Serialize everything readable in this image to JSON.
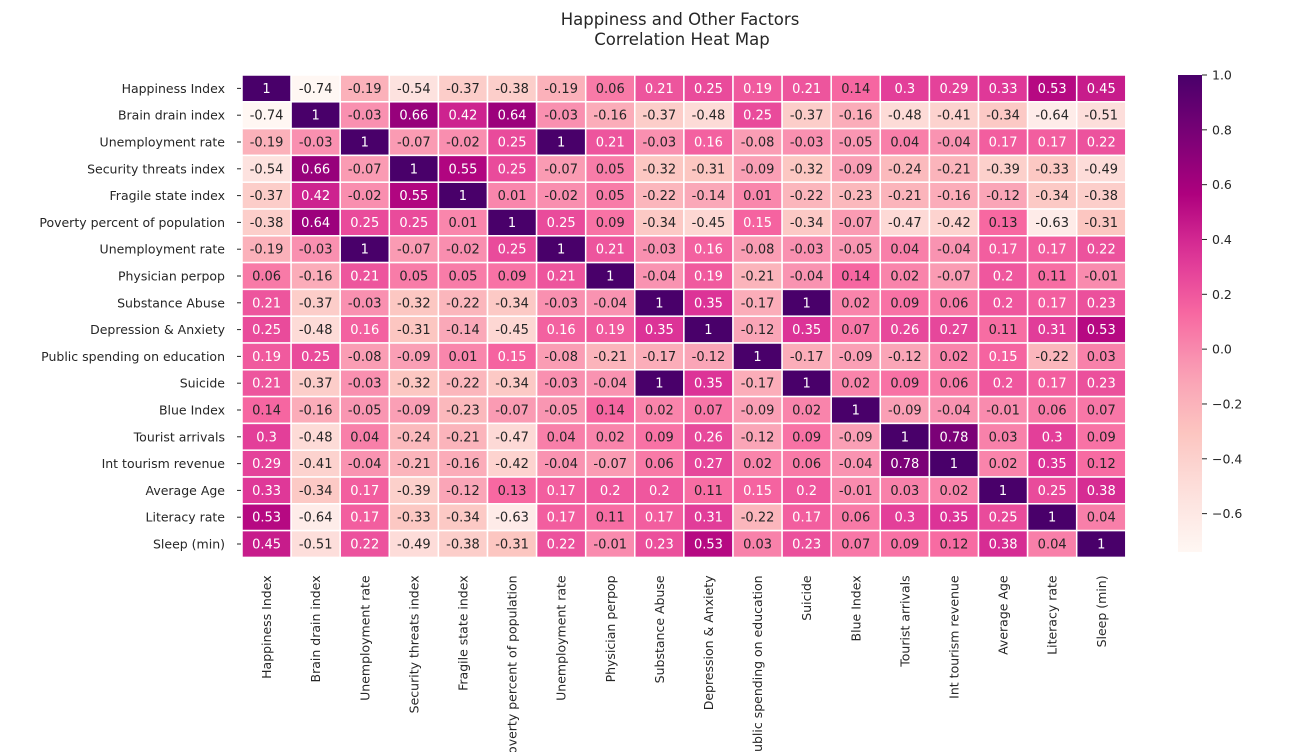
{
  "chart_data": {
    "type": "heatmap",
    "title": "Happiness and Other Factors",
    "subtitle": "Correlation Heat Map",
    "labels": [
      "Happiness Index",
      "Brain drain index",
      "Unemployment rate",
      "Security threats index",
      "Fragile state index",
      "Poverty percent of population",
      "Unemployment rate",
      "Physician perpop",
      "Substance Abuse",
      "Depression & Anxiety",
      "Public spending on education",
      "Suicide",
      "Blue Index",
      "Tourist arrivals",
      "Int tourism revenue",
      "Average Age",
      "Literacy rate",
      "Sleep (min)"
    ],
    "values": [
      [
        1,
        -0.74,
        -0.19,
        -0.54,
        -0.37,
        -0.38,
        -0.19,
        0.06,
        0.21,
        0.25,
        0.19,
        0.21,
        0.14,
        0.3,
        0.29,
        0.33,
        0.53,
        0.45
      ],
      [
        -0.74,
        1,
        -0.03,
        0.66,
        0.42,
        0.64,
        -0.03,
        -0.16,
        -0.37,
        -0.48,
        0.25,
        -0.37,
        -0.16,
        -0.48,
        -0.41,
        -0.34,
        -0.64,
        -0.51
      ],
      [
        -0.19,
        -0.03,
        1,
        -0.07,
        -0.02,
        0.25,
        1,
        0.21,
        -0.03,
        0.16,
        -0.08,
        -0.03,
        -0.05,
        0.04,
        -0.04,
        0.17,
        0.17,
        0.22
      ],
      [
        -0.54,
        0.66,
        -0.07,
        1,
        0.55,
        0.25,
        -0.07,
        0.05,
        -0.32,
        -0.31,
        -0.09,
        -0.32,
        -0.09,
        -0.24,
        -0.21,
        -0.39,
        -0.33,
        -0.49
      ],
      [
        -0.37,
        0.42,
        -0.02,
        0.55,
        1,
        0.01,
        -0.02,
        0.05,
        -0.22,
        -0.14,
        0.01,
        -0.22,
        -0.23,
        -0.21,
        -0.16,
        -0.12,
        -0.34,
        -0.38
      ],
      [
        -0.38,
        0.64,
        0.25,
        0.25,
        0.01,
        1,
        0.25,
        0.09,
        -0.34,
        -0.45,
        0.15,
        -0.34,
        -0.07,
        -0.47,
        -0.42,
        0.13,
        -0.63,
        -0.31
      ],
      [
        -0.19,
        -0.03,
        1,
        -0.07,
        -0.02,
        0.25,
        1,
        0.21,
        -0.03,
        0.16,
        -0.08,
        -0.03,
        -0.05,
        0.04,
        -0.04,
        0.17,
        0.17,
        0.22
      ],
      [
        0.06,
        -0.16,
        0.21,
        0.05,
        0.05,
        0.09,
        0.21,
        1,
        -0.04,
        0.19,
        -0.21,
        -0.04,
        0.14,
        0.02,
        -0.07,
        0.2,
        0.11,
        -0.01
      ],
      [
        0.21,
        -0.37,
        -0.03,
        -0.32,
        -0.22,
        -0.34,
        -0.03,
        -0.04,
        1,
        0.35,
        -0.17,
        1,
        0.02,
        0.09,
        0.06,
        0.2,
        0.17,
        0.23
      ],
      [
        0.25,
        -0.48,
        0.16,
        -0.31,
        -0.14,
        -0.45,
        0.16,
        0.19,
        0.35,
        1,
        -0.12,
        0.35,
        0.07,
        0.26,
        0.27,
        0.11,
        0.31,
        0.53
      ],
      [
        0.19,
        0.25,
        -0.08,
        -0.09,
        0.01,
        0.15,
        -0.08,
        -0.21,
        -0.17,
        -0.12,
        1,
        -0.17,
        -0.09,
        -0.12,
        0.02,
        0.15,
        -0.22,
        0.03
      ],
      [
        0.21,
        -0.37,
        -0.03,
        -0.32,
        -0.22,
        -0.34,
        -0.03,
        -0.04,
        1,
        0.35,
        -0.17,
        1,
        0.02,
        0.09,
        0.06,
        0.2,
        0.17,
        0.23
      ],
      [
        0.14,
        -0.16,
        -0.05,
        -0.09,
        -0.23,
        -0.07,
        -0.05,
        0.14,
        0.02,
        0.07,
        -0.09,
        0.02,
        1,
        -0.09,
        -0.04,
        -0.01,
        0.06,
        0.07
      ],
      [
        0.3,
        -0.48,
        0.04,
        -0.24,
        -0.21,
        -0.47,
        0.04,
        0.02,
        0.09,
        0.26,
        -0.12,
        0.09,
        -0.09,
        1,
        0.78,
        0.03,
        0.3,
        0.09
      ],
      [
        0.29,
        -0.41,
        -0.04,
        -0.21,
        -0.16,
        -0.42,
        -0.04,
        -0.07,
        0.06,
        0.27,
        0.02,
        0.06,
        -0.04,
        0.78,
        1,
        0.02,
        0.35,
        0.12
      ],
      [
        0.33,
        -0.34,
        0.17,
        -0.39,
        -0.12,
        0.13,
        0.17,
        0.2,
        0.2,
        0.11,
        0.15,
        0.2,
        -0.01,
        0.03,
        0.02,
        1,
        0.25,
        0.38
      ],
      [
        0.53,
        -0.64,
        0.17,
        -0.33,
        -0.34,
        -0.63,
        0.17,
        0.11,
        0.17,
        0.31,
        -0.22,
        0.17,
        0.06,
        0.3,
        0.35,
        0.25,
        1,
        0.04
      ],
      [
        0.45,
        -0.51,
        0.22,
        -0.49,
        -0.38,
        -0.31,
        0.22,
        -0.01,
        0.23,
        0.53,
        0.03,
        0.23,
        0.07,
        0.09,
        0.12,
        0.38,
        0.04,
        1
      ]
    ],
    "colormap": "RdPu",
    "vmin": -0.74,
    "vmax": 1.0,
    "colorbar_ticks": [
      1.0,
      0.8,
      0.6,
      0.4,
      0.2,
      0.0,
      -0.2,
      -0.4,
      -0.6
    ],
    "colorbar_tick_labels": [
      "1.0",
      "0.8",
      "0.6",
      "0.4",
      "0.2",
      "0.0",
      "−0.2",
      "−0.4",
      "−0.6"
    ],
    "annotated": true,
    "cell_border_color": "#ffffff",
    "dark_text_color": "#262626",
    "light_text_color": "#ffffff"
  }
}
